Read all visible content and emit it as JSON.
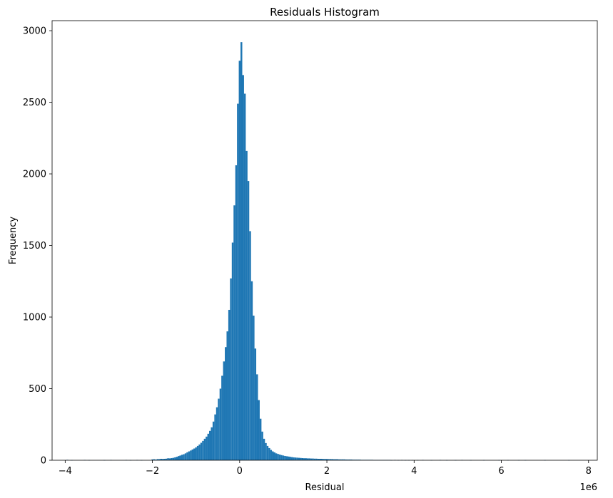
{
  "chart_data": {
    "type": "bar",
    "title": "Residuals Histogram",
    "xlabel": "Residual",
    "ylabel": "Frequency",
    "x_offset_label": "1e6",
    "xlim": [
      -4.3,
      8.2
    ],
    "ylim": [
      0,
      3070
    ],
    "x_ticks": [
      -4,
      -2,
      0,
      2,
      4,
      6,
      8
    ],
    "x_tick_labels": [
      "−4",
      "−2",
      "0",
      "2",
      "4",
      "6",
      "8"
    ],
    "y_ticks": [
      0,
      500,
      1000,
      1500,
      2000,
      2500,
      3000
    ],
    "y_tick_labels": [
      "0",
      "500",
      "1000",
      "1500",
      "2000",
      "2500",
      "3000"
    ],
    "bar_color": "#1f77b4",
    "bin_width": 0.0404,
    "bins": [
      [
        -3.95,
        3
      ],
      [
        -3.85,
        1
      ],
      [
        -3.55,
        2
      ],
      [
        -3.45,
        1
      ],
      [
        -3.1,
        1
      ],
      [
        -2.95,
        2
      ],
      [
        -2.6,
        2
      ],
      [
        -2.5,
        1
      ],
      [
        -2.35,
        2
      ],
      [
        -2.25,
        1
      ],
      [
        -2.0,
        6
      ],
      [
        -1.96,
        7
      ],
      [
        -1.92,
        5
      ],
      [
        -1.88,
        8
      ],
      [
        -1.84,
        8
      ],
      [
        -1.8,
        10
      ],
      [
        -1.76,
        9
      ],
      [
        -1.72,
        10
      ],
      [
        -1.68,
        11
      ],
      [
        -1.64,
        14
      ],
      [
        -1.6,
        13
      ],
      [
        -1.56,
        15
      ],
      [
        -1.52,
        17
      ],
      [
        -1.48,
        20
      ],
      [
        -1.44,
        24
      ],
      [
        -1.4,
        29
      ],
      [
        -1.36,
        33
      ],
      [
        -1.32,
        38
      ],
      [
        -1.28,
        42
      ],
      [
        -1.24,
        48
      ],
      [
        -1.2,
        55
      ],
      [
        -1.16,
        62
      ],
      [
        -1.12,
        68
      ],
      [
        -1.08,
        75
      ],
      [
        -1.04,
        82
      ],
      [
        -1.0,
        90
      ],
      [
        -0.96,
        100
      ],
      [
        -0.92,
        110
      ],
      [
        -0.88,
        122
      ],
      [
        -0.84,
        135
      ],
      [
        -0.8,
        150
      ],
      [
        -0.76,
        165
      ],
      [
        -0.72,
        185
      ],
      [
        -0.68,
        205
      ],
      [
        -0.64,
        230
      ],
      [
        -0.6,
        270
      ],
      [
        -0.56,
        320
      ],
      [
        -0.52,
        370
      ],
      [
        -0.48,
        430
      ],
      [
        -0.44,
        500
      ],
      [
        -0.4,
        590
      ],
      [
        -0.36,
        690
      ],
      [
        -0.32,
        790
      ],
      [
        -0.28,
        900
      ],
      [
        -0.24,
        1050
      ],
      [
        -0.2,
        1270
      ],
      [
        -0.16,
        1520
      ],
      [
        -0.12,
        1780
      ],
      [
        -0.08,
        2060
      ],
      [
        -0.04,
        2490
      ],
      [
        0.0,
        2790
      ],
      [
        0.04,
        2920
      ],
      [
        0.08,
        2690
      ],
      [
        0.12,
        2560
      ],
      [
        0.16,
        2160
      ],
      [
        0.2,
        1950
      ],
      [
        0.24,
        1600
      ],
      [
        0.28,
        1250
      ],
      [
        0.32,
        1010
      ],
      [
        0.36,
        780
      ],
      [
        0.4,
        600
      ],
      [
        0.44,
        420
      ],
      [
        0.48,
        290
      ],
      [
        0.52,
        200
      ],
      [
        0.56,
        150
      ],
      [
        0.6,
        120
      ],
      [
        0.64,
        100
      ],
      [
        0.68,
        85
      ],
      [
        0.72,
        72
      ],
      [
        0.76,
        62
      ],
      [
        0.8,
        55
      ],
      [
        0.84,
        48
      ],
      [
        0.88,
        44
      ],
      [
        0.92,
        40
      ],
      [
        0.96,
        36
      ],
      [
        1.0,
        33
      ],
      [
        1.04,
        30
      ],
      [
        1.08,
        28
      ],
      [
        1.12,
        26
      ],
      [
        1.16,
        24
      ],
      [
        1.2,
        22
      ],
      [
        1.24,
        20
      ],
      [
        1.28,
        19
      ],
      [
        1.32,
        18
      ],
      [
        1.36,
        17
      ],
      [
        1.4,
        16
      ],
      [
        1.44,
        15
      ],
      [
        1.48,
        14
      ],
      [
        1.52,
        14
      ],
      [
        1.56,
        13
      ],
      [
        1.6,
        13
      ],
      [
        1.64,
        12
      ],
      [
        1.68,
        12
      ],
      [
        1.72,
        11
      ],
      [
        1.76,
        11
      ],
      [
        1.8,
        10
      ],
      [
        1.84,
        10
      ],
      [
        1.88,
        10
      ],
      [
        1.92,
        9
      ],
      [
        1.96,
        9
      ],
      [
        2.0,
        9
      ],
      [
        2.04,
        8
      ],
      [
        2.08,
        8
      ],
      [
        2.12,
        8
      ],
      [
        2.16,
        7
      ],
      [
        2.2,
        7
      ],
      [
        2.24,
        7
      ],
      [
        2.28,
        6
      ],
      [
        2.32,
        6
      ],
      [
        2.36,
        6
      ],
      [
        2.4,
        6
      ],
      [
        2.44,
        5
      ],
      [
        2.48,
        5
      ],
      [
        2.52,
        5
      ],
      [
        2.56,
        5
      ],
      [
        2.6,
        4
      ],
      [
        2.64,
        4
      ],
      [
        2.68,
        4
      ],
      [
        2.72,
        4
      ],
      [
        2.76,
        4
      ],
      [
        2.8,
        3
      ],
      [
        2.84,
        3
      ],
      [
        2.88,
        3
      ],
      [
        2.92,
        3
      ],
      [
        2.96,
        3
      ],
      [
        3.0,
        3
      ],
      [
        3.04,
        3
      ],
      [
        3.08,
        2
      ],
      [
        3.12,
        2
      ],
      [
        3.16,
        2
      ],
      [
        3.2,
        2
      ],
      [
        3.24,
        2
      ],
      [
        3.28,
        2
      ],
      [
        3.32,
        2
      ],
      [
        3.36,
        2
      ],
      [
        3.4,
        2
      ],
      [
        3.44,
        2
      ],
      [
        3.48,
        1
      ],
      [
        3.56,
        2
      ],
      [
        3.64,
        1
      ],
      [
        3.72,
        2
      ],
      [
        3.8,
        1
      ],
      [
        3.88,
        1
      ],
      [
        3.96,
        1
      ],
      [
        4.08,
        1
      ],
      [
        4.2,
        2
      ],
      [
        4.4,
        1
      ],
      [
        4.6,
        2
      ],
      [
        4.75,
        1
      ],
      [
        4.95,
        1
      ],
      [
        5.1,
        2
      ],
      [
        5.3,
        1
      ],
      [
        5.6,
        1
      ],
      [
        5.95,
        1
      ],
      [
        6.15,
        1
      ],
      [
        6.4,
        1
      ],
      [
        6.55,
        1
      ],
      [
        7.0,
        1
      ],
      [
        7.55,
        1
      ]
    ]
  }
}
